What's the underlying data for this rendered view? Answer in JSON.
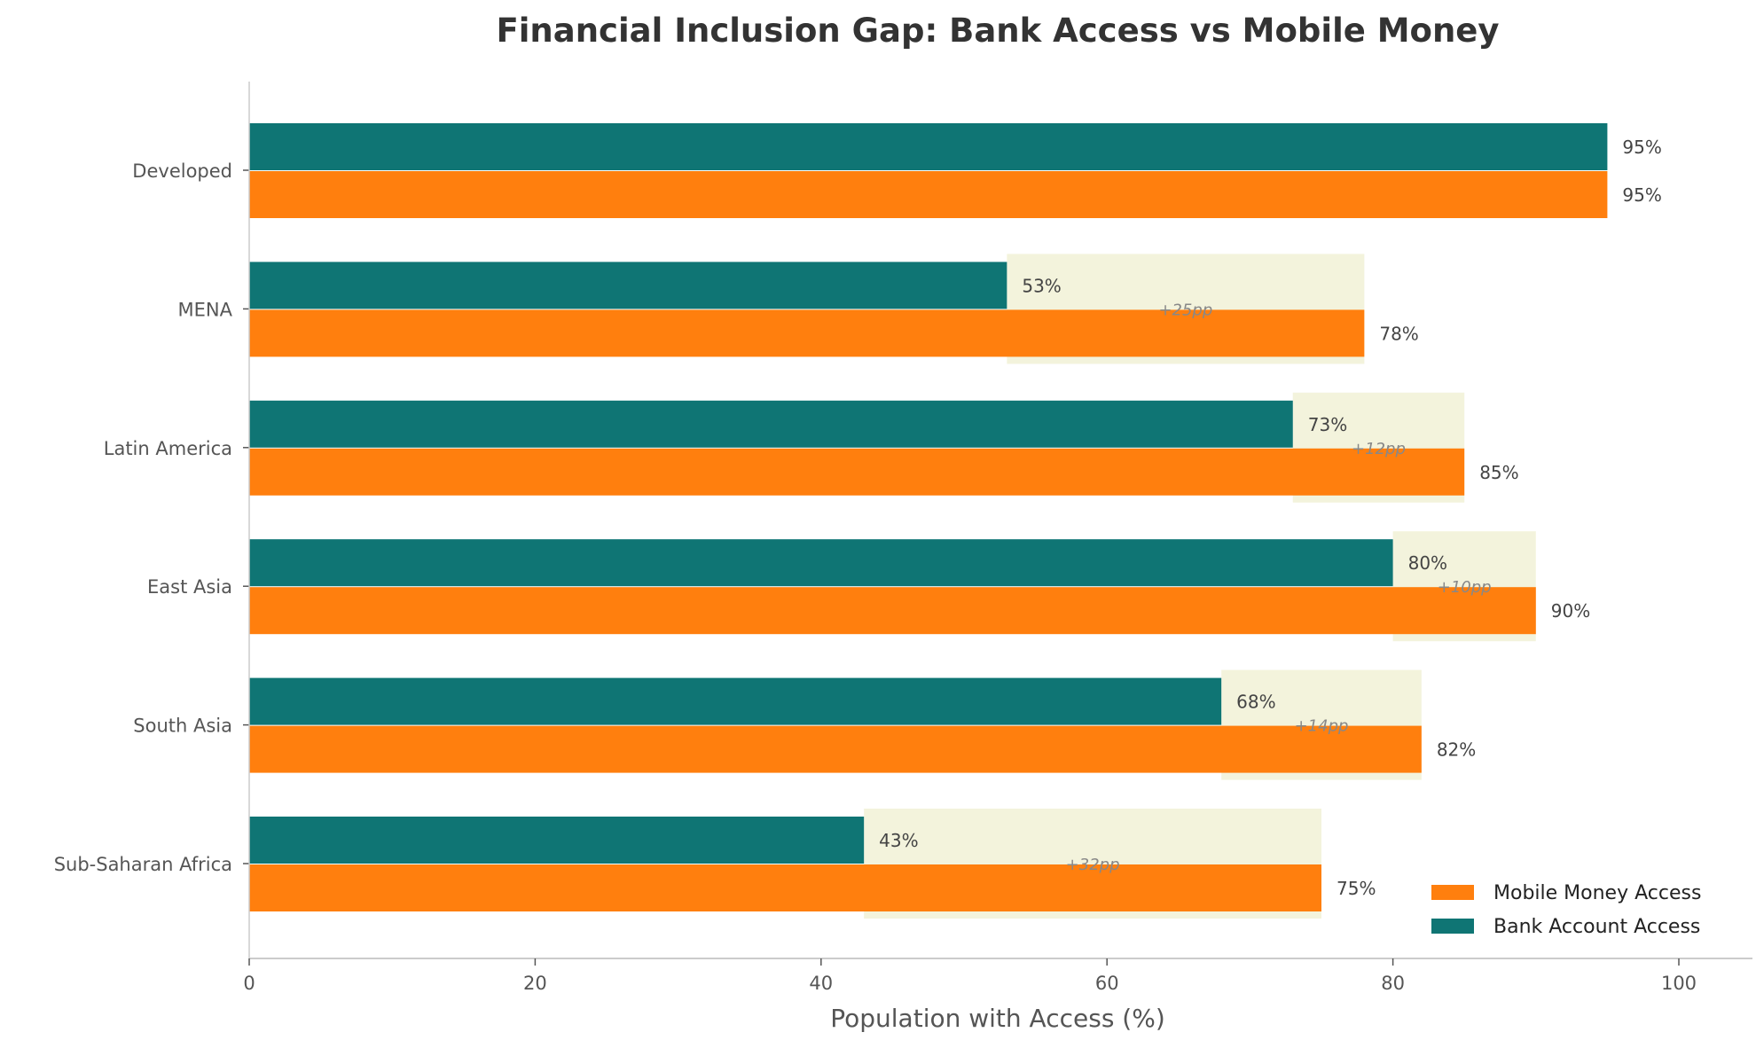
{
  "chart_data": {
    "type": "bar",
    "orientation": "horizontal",
    "title": "Financial Inclusion Gap: Bank Access vs Mobile Money",
    "xlabel": "Population with Access (%)",
    "ylabel": "",
    "xlim": [
      0,
      105
    ],
    "xticks": [
      0,
      20,
      40,
      60,
      80,
      100
    ],
    "grid": false,
    "legend_position": "bottom-right",
    "categories": [
      "Developed",
      "MENA",
      "Latin America",
      "East Asia",
      "South Asia",
      "Sub-Saharan Africa"
    ],
    "series": [
      {
        "name": "Mobile Money Access",
        "color": "#ff7f0e",
        "values": [
          95,
          78,
          85,
          90,
          82,
          75
        ],
        "labels": [
          "95%",
          "78%",
          "85%",
          "90%",
          "82%",
          "75%"
        ]
      },
      {
        "name": "Bank Account Access",
        "color": "#0f7574",
        "values": [
          95,
          53,
          73,
          80,
          68,
          43
        ],
        "labels": [
          "95%",
          "53%",
          "73%",
          "80%",
          "68%",
          "43%"
        ]
      }
    ],
    "gap_annotations": [
      "",
      "+25pp",
      "+12pp",
      "+10pp",
      "+14pp",
      "+32pp"
    ],
    "gap_highlight_color": "#f3f3dc"
  }
}
